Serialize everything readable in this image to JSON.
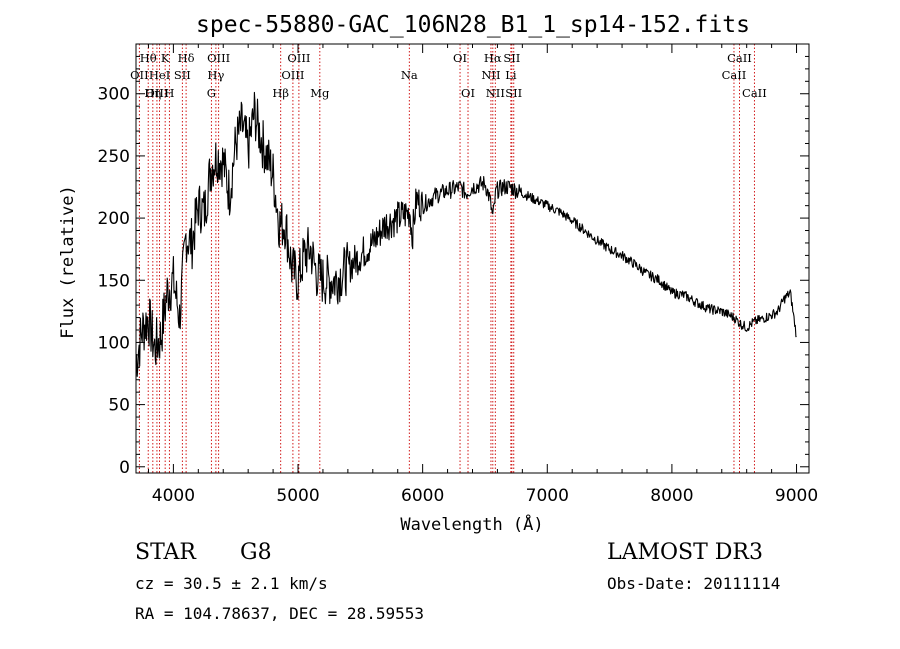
{
  "chart_data": {
    "type": "line",
    "title": "spec-55880-GAC_106N28_B1_1_sp14-152.fits",
    "xlabel": "Wavelength (Å)",
    "ylabel": "Flux (relative)",
    "xlim": [
      3700,
      9100
    ],
    "ylim": [
      -5,
      340
    ],
    "xticks": [
      4000,
      5000,
      6000,
      7000,
      8000,
      9000
    ],
    "yticks": [
      0,
      50,
      100,
      150,
      200,
      250,
      300
    ],
    "grid": false,
    "series": [
      {
        "name": "flux",
        "x": [
          3700,
          3750,
          3800,
          3850,
          3900,
          3950,
          4000,
          4050,
          4100,
          4150,
          4200,
          4250,
          4300,
          4350,
          4400,
          4450,
          4500,
          4550,
          4600,
          4650,
          4700,
          4750,
          4800,
          4850,
          4900,
          4950,
          5000,
          5050,
          5100,
          5150,
          5200,
          5300,
          5400,
          5500,
          5600,
          5700,
          5800,
          5900,
          5915,
          5950,
          6000,
          6100,
          6200,
          6300,
          6350,
          6400,
          6500,
          6540,
          6563,
          6590,
          6650,
          6700,
          6800,
          6900,
          7000,
          7100,
          7200,
          7300,
          7400,
          7500,
          7600,
          7700,
          7800,
          7900,
          8000,
          8100,
          8200,
          8300,
          8400,
          8500,
          8550,
          8600,
          8650,
          8700,
          8800,
          8850,
          8900,
          8950,
          9000
        ],
        "y": [
          85,
          110,
          120,
          95,
          105,
          140,
          150,
          120,
          185,
          180,
          210,
          205,
          240,
          250,
          245,
          220,
          260,
          275,
          255,
          285,
          265,
          250,
          235,
          195,
          195,
          160,
          150,
          170,
          175,
          155,
          150,
          150,
          160,
          170,
          180,
          195,
          200,
          205,
          185,
          215,
          210,
          218,
          222,
          225,
          220,
          225,
          228,
          215,
          200,
          222,
          225,
          225,
          220,
          215,
          210,
          205,
          198,
          190,
          182,
          175,
          170,
          163,
          155,
          150,
          140,
          138,
          132,
          127,
          125,
          120,
          115,
          112,
          116,
          118,
          122,
          125,
          135,
          140,
          105
        ]
      }
    ],
    "line_markers": [
      {
        "label": "Hθ",
        "wavelength": 3798,
        "row": 1
      },
      {
        "label": "OII",
        "wavelength": 3727,
        "row": 2
      },
      {
        "label": "OIII",
        "wavelength": 3868,
        "row": 3
      },
      {
        "label": "Hη",
        "wavelength": 3835,
        "row": 3
      },
      {
        "label": "K",
        "wavelength": 3934,
        "row": 1
      },
      {
        "label": "HeI",
        "wavelength": 3889,
        "row": 2
      },
      {
        "label": "H",
        "wavelength": 3968,
        "row": 3
      },
      {
        "label": "Hδ",
        "wavelength": 4102,
        "row": 1
      },
      {
        "label": "SII",
        "wavelength": 4072,
        "row": 2
      },
      {
        "label": "OIII",
        "wavelength": 4363,
        "row": 1
      },
      {
        "label": "Hγ",
        "wavelength": 4341,
        "row": 2
      },
      {
        "label": "G",
        "wavelength": 4305,
        "row": 3
      },
      {
        "label": "Hβ",
        "wavelength": 4861,
        "row": 3
      },
      {
        "label": "OIII",
        "wavelength": 4959,
        "row": 2
      },
      {
        "label": "OIII",
        "wavelength": 5007,
        "row": 1
      },
      {
        "label": "Mg",
        "wavelength": 5175,
        "row": 3
      },
      {
        "label": "Na",
        "wavelength": 5893,
        "row": 2
      },
      {
        "label": "OI",
        "wavelength": 6300,
        "row": 1
      },
      {
        "label": "OI",
        "wavelength": 6364,
        "row": 3
      },
      {
        "label": "Hα",
        "wavelength": 6563,
        "row": 1
      },
      {
        "label": "NII",
        "wavelength": 6548,
        "row": 2
      },
      {
        "label": "NII",
        "wavelength": 6583,
        "row": 3
      },
      {
        "label": "SII",
        "wavelength": 6716,
        "row": 1
      },
      {
        "label": "Li",
        "wavelength": 6708,
        "row": 2
      },
      {
        "label": "SII",
        "wavelength": 6731,
        "row": 3
      },
      {
        "label": "CaII",
        "wavelength": 8542,
        "row": 1
      },
      {
        "label": "CaII",
        "wavelength": 8498,
        "row": 2
      },
      {
        "label": "CaII",
        "wavelength": 8662,
        "row": 3
      }
    ],
    "colors": {
      "line": "#000000",
      "marker": "#cc0000"
    }
  },
  "info": {
    "object_class": "STAR",
    "subclass": "G8",
    "survey": "LAMOST DR3",
    "redshift": "cz = 30.5 ± 2.1 km/s",
    "obs_date": "Obs-Date: 20111114",
    "coords": "RA = 104.78637, DEC =  28.59553"
  }
}
